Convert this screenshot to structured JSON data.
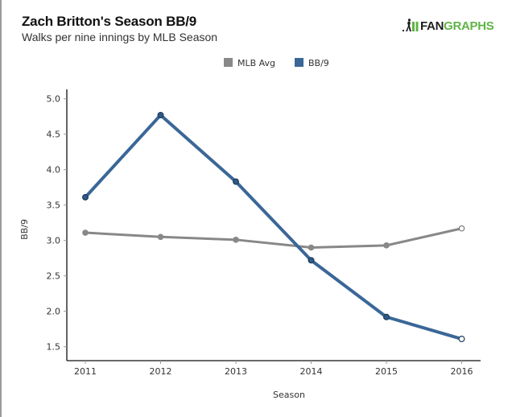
{
  "header": {
    "title": "Zach Britton's Season BB/9",
    "subtitle": "Walks per nine innings by MLB Season",
    "logo_fan": "FAN",
    "logo_graphs": "GRAPHS"
  },
  "colors": {
    "mlb_avg": "#888888",
    "bb9": "#3a6797",
    "bb9_marker": "#2f5a88",
    "marker_stroke": "#1d3b5c",
    "axis": "#111111",
    "logo_green": "#5fb446"
  },
  "chart_data": {
    "type": "line",
    "title": "Zach Britton's Season BB/9",
    "subtitle": "Walks per nine innings by MLB Season",
    "xlabel": "Season",
    "ylabel": "BB/9",
    "x": [
      2011,
      2012,
      2013,
      2014,
      2015,
      2016
    ],
    "x_tick_labels": [
      "2011",
      "2012",
      "2013",
      "2014",
      "2015",
      "2016"
    ],
    "y_ticks": [
      1.5,
      2.0,
      2.5,
      3.0,
      3.5,
      4.0,
      4.5,
      5.0
    ],
    "y_tick_labels": [
      "1.5",
      "2.0",
      "2.5",
      "3.0",
      "3.5",
      "4.0",
      "4.5",
      "5.0"
    ],
    "ylim": [
      1.3,
      5.13
    ],
    "xlim": [
      2010.75,
      2016.25
    ],
    "grid": false,
    "legend_position": "top-center",
    "series": [
      {
        "name": "MLB Avg",
        "values": [
          3.11,
          3.05,
          3.01,
          2.9,
          2.93,
          3.17
        ],
        "open_last_marker": true
      },
      {
        "name": "BB/9",
        "values": [
          3.61,
          4.77,
          3.83,
          2.72,
          1.92,
          1.61
        ],
        "open_last_marker": true
      }
    ]
  }
}
